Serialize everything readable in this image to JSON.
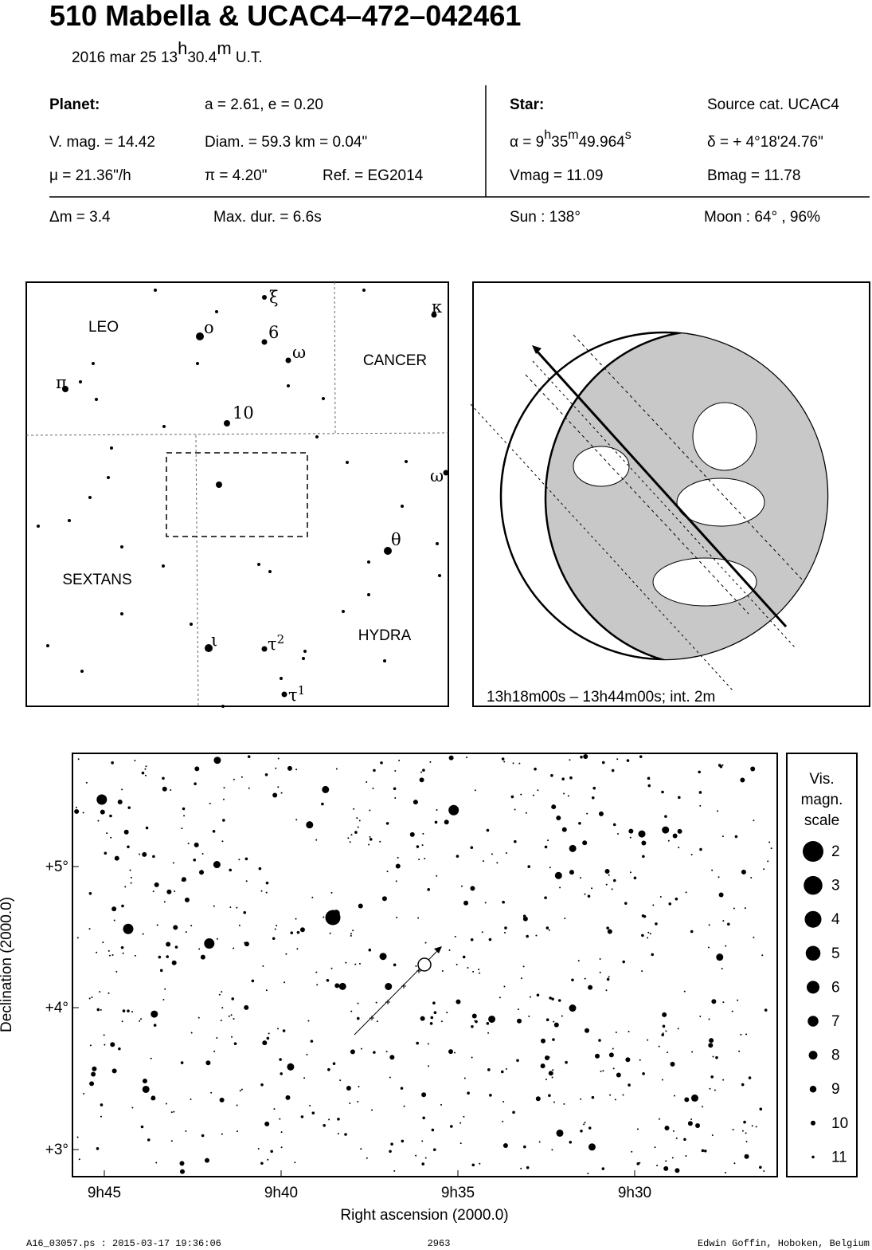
{
  "header": {
    "title": "510 Mabella  &  UCAC4–472–042461",
    "date_parts": [
      "2016 mar 25  13",
      "h",
      "30.4",
      "m",
      " U.T."
    ]
  },
  "planet": {
    "label": "Planet:",
    "orbit": "a = 2.61, e = 0.20",
    "vmag": "V. mag. = 14.42",
    "diam": "Diam. = 59.3 km = 0.04\"",
    "mu": "μ =  21.36\"/h",
    "parallax": "π =  4.20\"",
    "ref": "Ref. = EG2014"
  },
  "star": {
    "label": "Star:",
    "source": "Source cat.  UCAC4",
    "ra_parts": [
      "α =  9",
      "h",
      "35",
      "m",
      "49.964",
      "s"
    ],
    "dec": "δ = + 4°18'24.76\"",
    "vmag": "Vmag = 11.09",
    "bmag": "Bmag = 11.78"
  },
  "event": {
    "dm": "Δm = 3.4",
    "max_dur": "Max. dur. = 6.6s",
    "sun": "Sun : 138°",
    "moon": "Moon :  64° , 96%"
  },
  "finder": {
    "constellations": [
      "LEO",
      "CANCER",
      "SEXTANS",
      "HYDRA"
    ],
    "star_labels": [
      [
        "ξ"
      ],
      [
        "κ"
      ],
      [
        "ο"
      ],
      [
        "6"
      ],
      [
        "ω"
      ],
      [
        "π"
      ],
      [
        "10"
      ],
      [
        "ω"
      ],
      [
        "θ"
      ],
      [
        "ι"
      ],
      [
        "τ",
        "2"
      ],
      [
        "τ",
        "1"
      ]
    ]
  },
  "globe": {
    "caption": "13h18m00s – 13h44m00s; int.  2m"
  },
  "chart": {
    "y_label": "Declination (2000.0)",
    "x_label": "Right ascension (2000.0)",
    "yticks": [
      "+5°",
      "+4°",
      "+3°"
    ],
    "xticks": [
      "9h45",
      "9h40",
      "9h35",
      "9h30"
    ]
  },
  "legend": {
    "title": [
      "Vis.",
      "magn.",
      "scale"
    ],
    "magnitudes": [
      2,
      3,
      4,
      5,
      6,
      7,
      8,
      9,
      10,
      11
    ]
  },
  "footer": {
    "file": "A16_03057.ps : 2015-03-17 19:36:06",
    "page": "2963",
    "author": "Edwin Goffin, Hoboken, Belgium"
  }
}
